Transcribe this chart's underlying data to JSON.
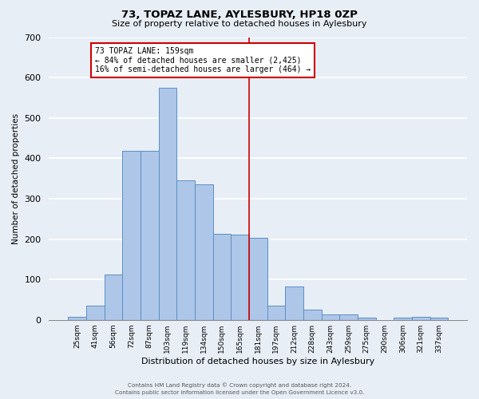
{
  "title": "73, TOPAZ LANE, AYLESBURY, HP18 0ZP",
  "subtitle": "Size of property relative to detached houses in Aylesbury",
  "xlabel": "Distribution of detached houses by size in Aylesbury",
  "ylabel": "Number of detached properties",
  "bar_labels": [
    "25sqm",
    "41sqm",
    "56sqm",
    "72sqm",
    "87sqm",
    "103sqm",
    "119sqm",
    "134sqm",
    "150sqm",
    "165sqm",
    "181sqm",
    "197sqm",
    "212sqm",
    "228sqm",
    "243sqm",
    "259sqm",
    "275sqm",
    "290sqm",
    "306sqm",
    "321sqm",
    "337sqm"
  ],
  "bar_heights": [
    8,
    35,
    113,
    418,
    418,
    575,
    345,
    335,
    213,
    210,
    202,
    35,
    82,
    25,
    13,
    13,
    5,
    0,
    5,
    8,
    5
  ],
  "bar_color": "#aec6e8",
  "bar_edge_color": "#5a8fc2",
  "background_color": "#e8eef6",
  "grid_color": "#ffffff",
  "vline_x": 9.5,
  "vline_color": "#cc0000",
  "annotation_title": "73 TOPAZ LANE: 159sqm",
  "annotation_line1": "← 84% of detached houses are smaller (2,425)",
  "annotation_line2": "16% of semi-detached houses are larger (464) →",
  "annotation_box_color": "#ffffff",
  "annotation_box_edge": "#cc0000",
  "ylim": [
    0,
    700
  ],
  "yticks": [
    0,
    100,
    200,
    300,
    400,
    500,
    600,
    700
  ],
  "footer1": "Contains HM Land Registry data © Crown copyright and database right 2024.",
  "footer2": "Contains public sector information licensed under the Open Government Licence v3.0."
}
